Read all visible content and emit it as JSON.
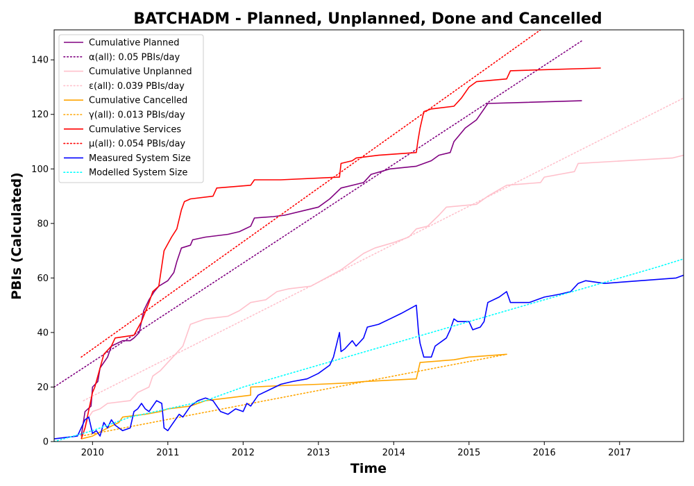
{
  "chart_data": {
    "type": "line",
    "title": "BATCHADM - Planned, Unplanned, Done  and Cancelled",
    "xlabel": "Time",
    "ylabel": "PBIs (Calculated)",
    "xlim": [
      2009.49,
      2017.85
    ],
    "ylim": [
      0,
      151
    ],
    "x_ticks": [
      2010,
      2011,
      2012,
      2013,
      2014,
      2015,
      2016,
      2017
    ],
    "x_tick_labels": [
      "2010",
      "2011",
      "2012",
      "2013",
      "2014",
      "2015",
      "2016",
      "2017"
    ],
    "y_ticks": [
      0,
      20,
      40,
      60,
      80,
      100,
      120,
      140
    ],
    "y_tick_labels": [
      "0",
      "20",
      "40",
      "60",
      "80",
      "100",
      "120",
      "140"
    ],
    "grid": false,
    "legend_position": "top-left",
    "series": [
      {
        "name": "Cumulative Planned",
        "color": "#800080",
        "style": "solid",
        "points": [
          [
            2009.85,
            2
          ],
          [
            2009.9,
            11
          ],
          [
            2009.98,
            13
          ],
          [
            2010.0,
            20
          ],
          [
            2010.07,
            22
          ],
          [
            2010.1,
            27
          ],
          [
            2010.2,
            31
          ],
          [
            2010.25,
            35
          ],
          [
            2010.4,
            37
          ],
          [
            2010.5,
            37
          ],
          [
            2010.55,
            38
          ],
          [
            2010.62,
            40
          ],
          [
            2010.68,
            48
          ],
          [
            2010.75,
            52
          ],
          [
            2010.82,
            55
          ],
          [
            2010.88,
            57
          ],
          [
            2011.0,
            59
          ],
          [
            2011.08,
            62
          ],
          [
            2011.12,
            66
          ],
          [
            2011.18,
            71
          ],
          [
            2011.3,
            72
          ],
          [
            2011.33,
            74
          ],
          [
            2011.5,
            75
          ],
          [
            2011.8,
            76
          ],
          [
            2011.95,
            77
          ],
          [
            2012.1,
            79
          ],
          [
            2012.15,
            82
          ],
          [
            2012.4,
            82.5
          ],
          [
            2012.55,
            83
          ],
          [
            2012.85,
            85
          ],
          [
            2013.0,
            86
          ],
          [
            2013.15,
            89
          ],
          [
            2013.3,
            93
          ],
          [
            2013.6,
            95
          ],
          [
            2013.7,
            98
          ],
          [
            2013.95,
            100
          ],
          [
            2014.3,
            101
          ],
          [
            2014.5,
            103
          ],
          [
            2014.6,
            105
          ],
          [
            2014.75,
            106
          ],
          [
            2014.8,
            110
          ],
          [
            2014.95,
            115
          ],
          [
            2015.1,
            118
          ],
          [
            2015.2,
            122
          ],
          [
            2015.25,
            124
          ],
          [
            2016.5,
            125
          ]
        ]
      },
      {
        "name": "α(all): 0.05 PBIs/day",
        "color": "#800080",
        "style": "dotted",
        "points": [
          [
            2009.49,
            20
          ],
          [
            2016.5,
            147
          ]
        ]
      },
      {
        "name": "Cumulative Unplanned",
        "color": "#ffc0cb",
        "style": "solid",
        "points": [
          [
            2009.85,
            1
          ],
          [
            2009.9,
            5
          ],
          [
            2009.95,
            9
          ],
          [
            2010.0,
            11
          ],
          [
            2010.1,
            12
          ],
          [
            2010.2,
            14
          ],
          [
            2010.5,
            15
          ],
          [
            2010.6,
            18
          ],
          [
            2010.75,
            20
          ],
          [
            2010.8,
            24
          ],
          [
            2010.9,
            26
          ],
          [
            2011.0,
            29
          ],
          [
            2011.1,
            32
          ],
          [
            2011.2,
            35
          ],
          [
            2011.3,
            43
          ],
          [
            2011.5,
            45
          ],
          [
            2011.8,
            46
          ],
          [
            2011.95,
            48
          ],
          [
            2012.1,
            51
          ],
          [
            2012.3,
            52
          ],
          [
            2012.45,
            55
          ],
          [
            2012.6,
            56
          ],
          [
            2012.9,
            57
          ],
          [
            2013.1,
            60
          ],
          [
            2013.3,
            63
          ],
          [
            2013.45,
            66
          ],
          [
            2013.6,
            69
          ],
          [
            2013.75,
            71
          ],
          [
            2014.0,
            73
          ],
          [
            2014.2,
            75
          ],
          [
            2014.3,
            78
          ],
          [
            2014.45,
            79
          ],
          [
            2014.6,
            83
          ],
          [
            2014.7,
            86
          ],
          [
            2015.1,
            87
          ],
          [
            2015.25,
            90
          ],
          [
            2015.5,
            94
          ],
          [
            2015.95,
            95
          ],
          [
            2016.0,
            97
          ],
          [
            2016.2,
            98
          ],
          [
            2016.4,
            99
          ],
          [
            2016.45,
            102
          ],
          [
            2017.7,
            104
          ],
          [
            2017.85,
            105
          ]
        ]
      },
      {
        "name": "ε(all): 0.039 PBIs/day",
        "color": "#ffc0cb",
        "style": "dotted",
        "points": [
          [
            2009.88,
            15
          ],
          [
            2017.85,
            126
          ]
        ]
      },
      {
        "name": "Cumulative Cancelled",
        "color": "#ffa500",
        "style": "solid",
        "points": [
          [
            2009.85,
            1
          ],
          [
            2010.0,
            2
          ],
          [
            2010.2,
            5
          ],
          [
            2010.35,
            7
          ],
          [
            2010.4,
            9
          ],
          [
            2010.7,
            10
          ],
          [
            2010.9,
            11
          ],
          [
            2011.0,
            12
          ],
          [
            2011.3,
            13
          ],
          [
            2011.5,
            15
          ],
          [
            2011.8,
            16
          ],
          [
            2012.1,
            17
          ],
          [
            2012.1,
            20
          ],
          [
            2012.5,
            20.5
          ],
          [
            2013.0,
            21
          ],
          [
            2013.4,
            21.5
          ],
          [
            2013.6,
            22
          ],
          [
            2014.3,
            23
          ],
          [
            2014.35,
            29
          ],
          [
            2014.8,
            30
          ],
          [
            2015.0,
            31
          ],
          [
            2015.5,
            32
          ]
        ]
      },
      {
        "name": "γ(all): 0.013 PBIs/day",
        "color": "#ffa500",
        "style": "dotted",
        "points": [
          [
            2009.85,
            2
          ],
          [
            2015.5,
            32
          ]
        ]
      },
      {
        "name": "Cumulative Services",
        "color": "#ff0000",
        "style": "solid",
        "points": [
          [
            2009.85,
            1
          ],
          [
            2009.9,
            5
          ],
          [
            2010.0,
            18
          ],
          [
            2010.03,
            20
          ],
          [
            2010.08,
            25
          ],
          [
            2010.15,
            32
          ],
          [
            2010.25,
            35
          ],
          [
            2010.3,
            38
          ],
          [
            2010.55,
            39
          ],
          [
            2010.65,
            44
          ],
          [
            2010.75,
            51
          ],
          [
            2010.8,
            55
          ],
          [
            2010.88,
            57
          ],
          [
            2010.95,
            70
          ],
          [
            2011.05,
            75
          ],
          [
            2011.12,
            78
          ],
          [
            2011.18,
            85
          ],
          [
            2011.22,
            88
          ],
          [
            2011.3,
            89
          ],
          [
            2011.6,
            90
          ],
          [
            2011.65,
            93
          ],
          [
            2012.1,
            94
          ],
          [
            2012.15,
            96
          ],
          [
            2012.5,
            96
          ],
          [
            2013.28,
            97
          ],
          [
            2013.3,
            102
          ],
          [
            2013.45,
            103
          ],
          [
            2013.5,
            104
          ],
          [
            2013.8,
            105
          ],
          [
            2014.3,
            106
          ],
          [
            2014.32,
            110
          ],
          [
            2014.35,
            115
          ],
          [
            2014.4,
            121
          ],
          [
            2014.5,
            122
          ],
          [
            2014.8,
            123
          ],
          [
            2014.9,
            126
          ],
          [
            2015.0,
            130
          ],
          [
            2015.1,
            132
          ],
          [
            2015.5,
            133
          ],
          [
            2015.55,
            136
          ],
          [
            2016.75,
            137
          ]
        ]
      },
      {
        "name": "μ(all): 0.054 PBIs/day",
        "color": "#ff0000",
        "style": "dotted",
        "points": [
          [
            2009.85,
            31
          ],
          [
            2016.0,
            152
          ]
        ]
      },
      {
        "name": "Measured System Size",
        "color": "#0000ff",
        "style": "solid",
        "points": [
          [
            2009.49,
            1
          ],
          [
            2009.8,
            2
          ],
          [
            2009.9,
            8
          ],
          [
            2009.95,
            9
          ],
          [
            2010.0,
            3
          ],
          [
            2010.05,
            4
          ],
          [
            2010.1,
            2
          ],
          [
            2010.15,
            7
          ],
          [
            2010.2,
            5
          ],
          [
            2010.25,
            8
          ],
          [
            2010.3,
            6
          ],
          [
            2010.35,
            5
          ],
          [
            2010.4,
            4
          ],
          [
            2010.5,
            5
          ],
          [
            2010.55,
            11
          ],
          [
            2010.6,
            12
          ],
          [
            2010.65,
            14
          ],
          [
            2010.7,
            12
          ],
          [
            2010.75,
            11
          ],
          [
            2010.85,
            15
          ],
          [
            2010.92,
            14
          ],
          [
            2010.95,
            5
          ],
          [
            2011.0,
            4
          ],
          [
            2011.05,
            6
          ],
          [
            2011.1,
            8
          ],
          [
            2011.15,
            10
          ],
          [
            2011.2,
            9
          ],
          [
            2011.3,
            13
          ],
          [
            2011.4,
            15
          ],
          [
            2011.5,
            16
          ],
          [
            2011.6,
            15
          ],
          [
            2011.7,
            11
          ],
          [
            2011.8,
            10
          ],
          [
            2011.9,
            12
          ],
          [
            2012.0,
            11
          ],
          [
            2012.05,
            14
          ],
          [
            2012.1,
            13
          ],
          [
            2012.2,
            17
          ],
          [
            2012.35,
            19
          ],
          [
            2012.5,
            21
          ],
          [
            2012.65,
            22
          ],
          [
            2012.85,
            23
          ],
          [
            2013.0,
            25
          ],
          [
            2013.15,
            28
          ],
          [
            2013.2,
            31
          ],
          [
            2013.28,
            40
          ],
          [
            2013.3,
            33
          ],
          [
            2013.35,
            34
          ],
          [
            2013.45,
            37
          ],
          [
            2013.5,
            35
          ],
          [
            2013.6,
            38
          ],
          [
            2013.65,
            42
          ],
          [
            2013.8,
            43
          ],
          [
            2013.95,
            45
          ],
          [
            2014.1,
            47
          ],
          [
            2014.3,
            50
          ],
          [
            2014.33,
            40
          ],
          [
            2014.35,
            36
          ],
          [
            2014.4,
            31
          ],
          [
            2014.5,
            31
          ],
          [
            2014.55,
            35
          ],
          [
            2014.7,
            38
          ],
          [
            2014.75,
            41
          ],
          [
            2014.8,
            45
          ],
          [
            2014.85,
            44
          ],
          [
            2015.0,
            44
          ],
          [
            2015.05,
            41
          ],
          [
            2015.15,
            42
          ],
          [
            2015.2,
            44
          ],
          [
            2015.25,
            51
          ],
          [
            2015.4,
            53
          ],
          [
            2015.5,
            55
          ],
          [
            2015.55,
            51
          ],
          [
            2015.8,
            51
          ],
          [
            2016.0,
            53
          ],
          [
            2016.2,
            54
          ],
          [
            2016.35,
            55
          ],
          [
            2016.45,
            58
          ],
          [
            2016.55,
            59
          ],
          [
            2016.8,
            58
          ],
          [
            2017.75,
            60
          ],
          [
            2017.85,
            61
          ]
        ]
      },
      {
        "name": "Modelled System Size",
        "color": "#00ffff",
        "style": "dotted",
        "points": [
          [
            2009.49,
            0
          ],
          [
            2010.0,
            4
          ],
          [
            2010.5,
            9
          ],
          [
            2011.0,
            12
          ],
          [
            2011.5,
            15
          ],
          [
            2012.0,
            20
          ],
          [
            2012.5,
            24
          ],
          [
            2013.0,
            28
          ],
          [
            2013.5,
            32
          ],
          [
            2014.0,
            36
          ],
          [
            2014.5,
            40
          ],
          [
            2015.0,
            44
          ],
          [
            2015.5,
            48
          ],
          [
            2016.0,
            52
          ],
          [
            2016.5,
            56
          ],
          [
            2017.0,
            60
          ],
          [
            2017.5,
            64
          ],
          [
            2017.85,
            67
          ]
        ]
      }
    ]
  }
}
